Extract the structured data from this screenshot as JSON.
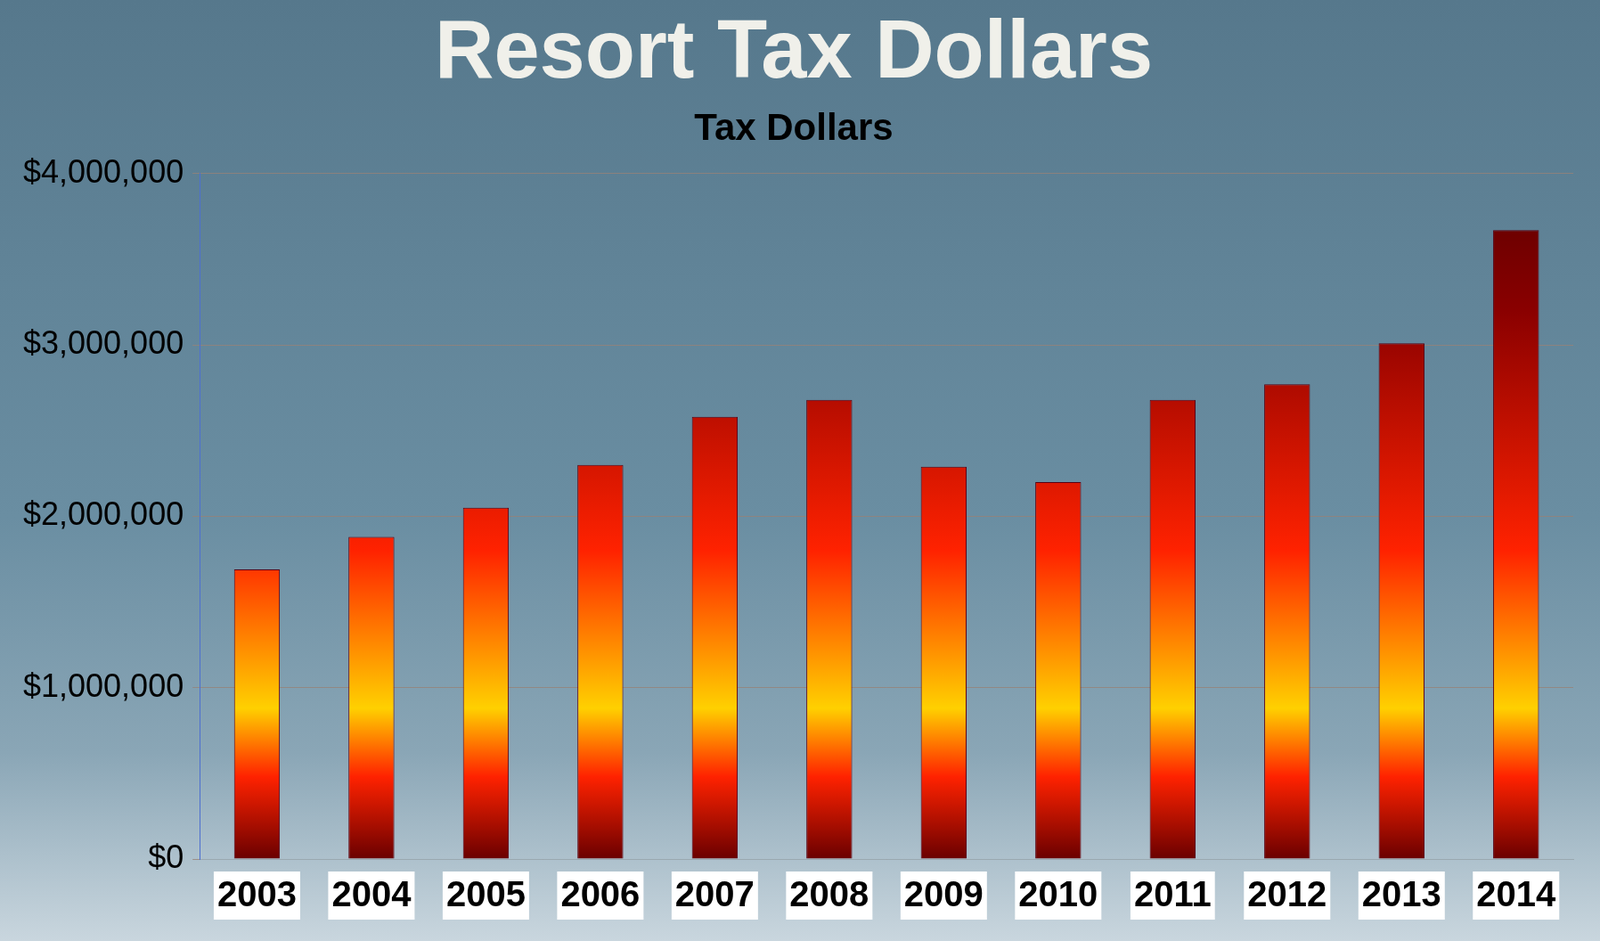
{
  "chart_data": {
    "type": "bar",
    "title": "Resort Tax Dollars",
    "subtitle": "Tax Dollars",
    "categories": [
      "2003",
      "2004",
      "2005",
      "2006",
      "2007",
      "2008",
      "2009",
      "2010",
      "2011",
      "2012",
      "2013",
      "2014"
    ],
    "values": [
      1690000,
      1880000,
      2050000,
      2300000,
      2580000,
      2680000,
      2290000,
      2200000,
      2680000,
      2770000,
      3010000,
      3670000
    ],
    "color": "#ff2200",
    "ylim": [
      0,
      4000000
    ],
    "yticks": [
      {
        "value": 0,
        "label": "$0"
      },
      {
        "value": 1000000,
        "label": "$1,000,000"
      },
      {
        "value": 2000000,
        "label": "$2,000,000"
      },
      {
        "value": 3000000,
        "label": "$3,000,000"
      },
      {
        "value": 4000000,
        "label": "$4,000,000"
      }
    ],
    "grid": true
  }
}
